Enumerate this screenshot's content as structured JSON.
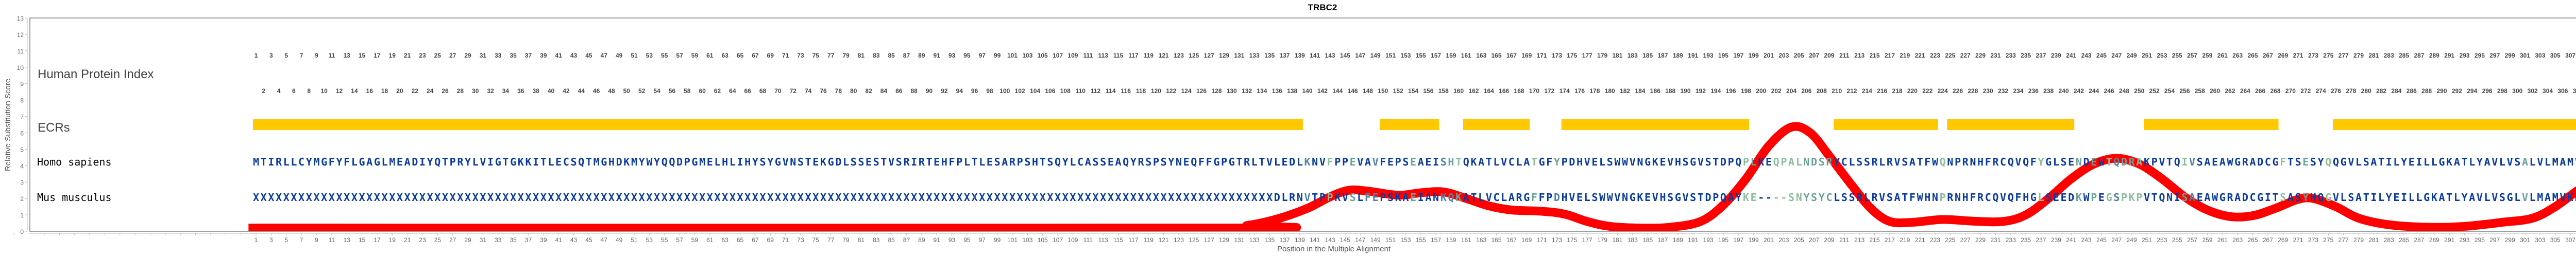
{
  "chart_data": {
    "type": "line",
    "title": "TRBC2",
    "xlabel": "Position in the Multiple Alignment",
    "ylabel": "Relative Substitution Score",
    "ylim": [
      0,
      13
    ],
    "yticks": [
      0,
      1,
      2,
      3,
      4,
      5,
      6,
      7,
      8,
      9,
      10,
      11,
      12,
      13
    ],
    "xlim": [
      1,
      315
    ],
    "grid": false,
    "row_labels": {
      "index": "Human Protein Index",
      "ecrs": "ECRs",
      "human": "Homo sapiens",
      "mouse": "Mus musculus"
    },
    "ecrs": [
      [
        1,
        139
      ],
      [
        150,
        157
      ],
      [
        161,
        169
      ],
      [
        174,
        198
      ],
      [
        210,
        223
      ],
      [
        225,
        241
      ],
      [
        251,
        268
      ],
      [
        276,
        311
      ]
    ],
    "sequences": {
      "human": "MTIRLLCYMGFYFLGAGLMEADIYQTPRYLVIGTGKKITLECSQTMGHDKMYWYQQDPGMELHLIHYSYGVNSTEKGDLSSESTVSRIRTEHFPLTLESARPSHTSQYLCASSEAQYRSPSYNEQFFGPGTRLTVLEDLKNVFPPEVAVFEPSEAEISHTQKATLVCLATGFYPDHVELSWWVNGKEVHSGVSTDPQPLKEQPALNDSRYCLSSRLRVSATFWQNPRNHFRCQVQFYGLSENDEWTQDRAKPVTQIVSAEAWGRADCGFTSESYQQGVLSATILYEILLGKATLYAVLVSALVLMAMVKRKDSRG",
      "mouse": "XXXXXXXXXXXXXXXXXXXXXXXXXXXXXXXXXXXXXXXXXXXXXXXXXXXXXXXXXXXXXXXXXXXXXXXXXXXXXXXXXXXXXXXXXXXXXXXXXXXXXXXXXXXXXXXXXXXXXXXXXXXXXXXXXXXXXXXDLRNVTPPKVSLFEPSKAEIANKQKATLVCLARGFFPDHVELSWWVNGKEVHSGVSTDPQAYKE----SNYSYCLSSRLRVSATFWHNPRNHFRCQVQFHGLSEEDKWPEGSPKPVTQNISAEAWGRADCGITSASYHQGVLSATILYEILLGKATLYAVLVSGLVLMAMVKKKNS--"
    },
    "residue_colors": {
      "conserved": "#0a3aa0",
      "1": "#4f83a3",
      "2": "#6aa29a",
      "3": "#8dbd9d"
    },
    "residue_classes": {
      "human": {
        "140": 1,
        "143": 3,
        "146": 2,
        "149": 1,
        "154": 2,
        "158": 1,
        "159": 2,
        "160": 3,
        "170": 3,
        "173": 2,
        "198": 3,
        "199": 2,
        "202": 3,
        "203": 3,
        "204": 3,
        "205": 3,
        "206": 2,
        "207": 2,
        "208": 2,
        "209": 2,
        "224": 3,
        "237": 3,
        "242": 2,
        "244": 2,
        "246": 3,
        "247": 1,
        "248": 2,
        "249": 2,
        "250": 3,
        "256": 3,
        "257": 1,
        "269": 3,
        "272": 2,
        "275": 3,
        "301": 2,
        "310": 1,
        "312": 2,
        "314": 3,
        "315": 3
      },
      "mouse": {
        "140": 1,
        "143": 3,
        "146": 2,
        "148": 1,
        "149": 1,
        "154": 2,
        "158": 1,
        "159": 1,
        "160": 2,
        "170": 2,
        "173": 1,
        "198": 3,
        "199": 3,
        "202": 3,
        "203": 3,
        "204": 3,
        "205": 3,
        "206": 2,
        "207": 2,
        "208": 2,
        "209": 2,
        "224": 3,
        "237": 3,
        "242": 2,
        "244": 2,
        "246": 3,
        "247": 1,
        "248": 3,
        "249": 3,
        "250": 3,
        "256": 2,
        "257": 1,
        "269": 3,
        "272": 2,
        "275": 3,
        "301": 2,
        "310": 1,
        "312": 2,
        "314": 3,
        "315": 3
      }
    },
    "series": [
      {
        "color": "#ff0000",
        "points": [
          [
            0,
            0.2
          ],
          [
            128,
            0.2
          ],
          [
            132,
            0.35
          ],
          [
            136,
            0.75
          ],
          [
            140,
            1.4
          ],
          [
            143,
            2.1
          ],
          [
            145.5,
            2.5
          ],
          [
            148,
            2.45
          ],
          [
            152,
            2.2
          ],
          [
            155,
            2.35
          ],
          [
            158,
            2.4
          ],
          [
            161,
            2.0
          ],
          [
            164,
            1.55
          ],
          [
            167,
            1.3
          ],
          [
            171,
            1.22
          ],
          [
            174,
            1.05
          ],
          [
            177,
            0.6
          ],
          [
            180,
            0.3
          ],
          [
            184,
            0.2
          ],
          [
            188,
            0.25
          ],
          [
            192,
            0.6
          ],
          [
            195,
            1.6
          ],
          [
            198,
            3.2
          ],
          [
            201,
            5.2
          ],
          [
            204,
            6.35
          ],
          [
            206.5,
            6.0
          ],
          [
            209,
            4.6
          ],
          [
            212,
            2.8
          ],
          [
            214.5,
            1.4
          ],
          [
            217,
            0.6
          ],
          [
            220,
            0.55
          ],
          [
            224,
            0.72
          ],
          [
            228,
            0.62
          ],
          [
            232,
            0.6
          ],
          [
            235,
            1.0
          ],
          [
            238,
            2.0
          ],
          [
            241,
            3.2
          ],
          [
            244,
            4.1
          ],
          [
            247,
            4.45
          ],
          [
            250,
            4.1
          ],
          [
            253,
            3.2
          ],
          [
            256,
            2.1
          ],
          [
            259,
            1.3
          ],
          [
            262,
            0.9
          ],
          [
            265,
            0.95
          ],
          [
            268,
            1.4
          ],
          [
            271,
            1.95
          ],
          [
            273,
            2.0
          ],
          [
            276,
            1.5
          ],
          [
            279,
            0.8
          ],
          [
            283,
            0.4
          ],
          [
            288,
            0.25
          ],
          [
            293,
            0.3
          ],
          [
            298,
            0.55
          ],
          [
            302,
            0.8
          ],
          [
            305,
            1.5
          ],
          [
            308,
            2.5
          ],
          [
            311,
            3.3
          ],
          [
            313,
            3.8
          ],
          [
            315,
            4.3
          ]
        ]
      }
    ],
    "ecr_color": "#ffc800"
  }
}
